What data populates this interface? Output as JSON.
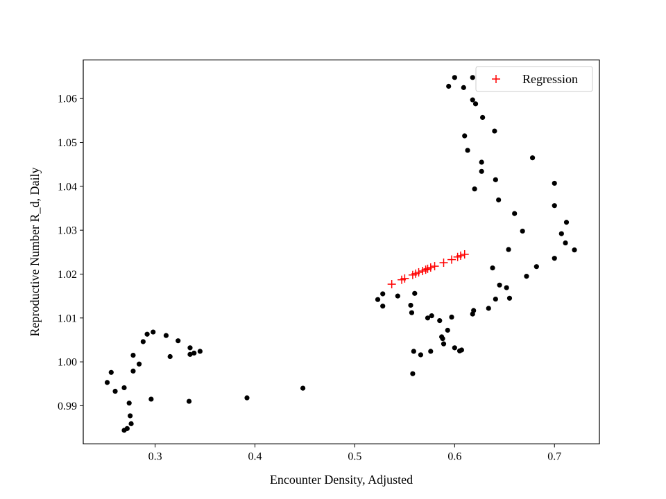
{
  "chart_data": {
    "type": "scatter",
    "title": "",
    "xlabel": "Encounter Density, Adjusted",
    "ylabel": "Reproductive Number R_d, Daily",
    "xlim": [
      0.228,
      0.745
    ],
    "ylim": [
      0.9813,
      1.0688
    ],
    "xticks": [
      0.3,
      0.4,
      0.5,
      0.6,
      0.7
    ],
    "xtick_labels": [
      "0.3",
      "0.4",
      "0.5",
      "0.6",
      "0.7"
    ],
    "yticks": [
      0.99,
      1.0,
      1.01,
      1.02,
      1.03,
      1.04,
      1.05,
      1.06
    ],
    "ytick_labels": [
      "0.99",
      "1.00",
      "1.01",
      "1.02",
      "1.03",
      "1.04",
      "1.05",
      "1.06"
    ],
    "grid": false,
    "legend": {
      "position": "top-right",
      "entries": [
        "Regression"
      ]
    },
    "colors": {
      "observed": "#000000",
      "regression": "#ff0000"
    },
    "series": [
      {
        "marker": "dot",
        "color": "#000000",
        "points": [
          [
            0.252,
            0.9953
          ],
          [
            0.256,
            0.9976
          ],
          [
            0.26,
            0.9933
          ],
          [
            0.269,
            0.9941
          ],
          [
            0.269,
            0.9844
          ],
          [
            0.272,
            0.9848
          ],
          [
            0.274,
            0.9906
          ],
          [
            0.275,
            0.9877
          ],
          [
            0.276,
            0.9859
          ],
          [
            0.278,
            0.9979
          ],
          [
            0.278,
            1.0015
          ],
          [
            0.284,
            0.9995
          ],
          [
            0.288,
            1.0046
          ],
          [
            0.292,
            1.0063
          ],
          [
            0.296,
            0.9915
          ],
          [
            0.298,
            1.0068
          ],
          [
            0.311,
            1.006
          ],
          [
            0.315,
            1.0012
          ],
          [
            0.323,
            1.0048
          ],
          [
            0.334,
            0.991
          ],
          [
            0.335,
            1.0017
          ],
          [
            0.335,
            1.0032
          ],
          [
            0.339,
            1.002
          ],
          [
            0.345,
            1.0024
          ],
          [
            0.392,
            0.9918
          ],
          [
            0.448,
            0.994
          ],
          [
            0.523,
            1.0142
          ],
          [
            0.528,
            1.0155
          ],
          [
            0.528,
            1.0127
          ],
          [
            0.543,
            1.015
          ],
          [
            0.556,
            1.0129
          ],
          [
            0.557,
            1.0112
          ],
          [
            0.559,
            1.0024
          ],
          [
            0.56,
            1.0156
          ],
          [
            0.558,
            0.9973
          ],
          [
            0.566,
            1.0016
          ],
          [
            0.573,
            1.01
          ],
          [
            0.576,
            1.0024
          ],
          [
            0.577,
            1.0105
          ],
          [
            0.585,
            1.0094
          ],
          [
            0.587,
            1.0057
          ],
          [
            0.588,
            1.0053
          ],
          [
            0.589,
            1.0041
          ],
          [
            0.593,
            1.0072
          ],
          [
            0.597,
            1.0102
          ],
          [
            0.6,
            1.0032
          ],
          [
            0.605,
            1.0025
          ],
          [
            0.607,
            1.0027
          ],
          [
            0.594,
            1.0628
          ],
          [
            0.6,
            1.0648
          ],
          [
            0.609,
            1.0625
          ],
          [
            0.618,
            1.0648
          ],
          [
            0.618,
            1.0597
          ],
          [
            0.621,
            1.0588
          ],
          [
            0.628,
            1.0557
          ],
          [
            0.61,
            1.0515
          ],
          [
            0.613,
            1.0482
          ],
          [
            0.627,
            1.0455
          ],
          [
            0.627,
            1.0434
          ],
          [
            0.62,
            1.0394
          ],
          [
            0.618,
            1.0109
          ],
          [
            0.619,
            1.0117
          ],
          [
            0.634,
            1.0122
          ],
          [
            0.638,
            1.0214
          ],
          [
            0.64,
            1.0526
          ],
          [
            0.641,
            1.0415
          ],
          [
            0.644,
            1.0369
          ],
          [
            0.641,
            1.0143
          ],
          [
            0.645,
            1.0175
          ],
          [
            0.652,
            1.0169
          ],
          [
            0.654,
            1.0256
          ],
          [
            0.655,
            1.0145
          ],
          [
            0.66,
            1.0338
          ],
          [
            0.668,
            1.0298
          ],
          [
            0.672,
            1.0195
          ],
          [
            0.678,
            1.0465
          ],
          [
            0.682,
            1.0217
          ],
          [
            0.7,
            1.0407
          ],
          [
            0.7,
            1.0356
          ],
          [
            0.7,
            1.0236
          ],
          [
            0.707,
            1.0292
          ],
          [
            0.711,
            1.0271
          ],
          [
            0.712,
            1.0318
          ],
          [
            0.72,
            1.0255
          ]
        ]
      },
      {
        "name": "Regression",
        "marker": "plus",
        "color": "#ff0000",
        "points": [
          [
            0.537,
            1.0177
          ],
          [
            0.547,
            1.0187
          ],
          [
            0.55,
            1.019
          ],
          [
            0.558,
            1.0198
          ],
          [
            0.561,
            1.0201
          ],
          [
            0.564,
            1.0204
          ],
          [
            0.568,
            1.0207
          ],
          [
            0.571,
            1.021
          ],
          [
            0.573,
            1.0212
          ],
          [
            0.576,
            1.0215
          ],
          [
            0.58,
            1.0218
          ],
          [
            0.589,
            1.0226
          ],
          [
            0.597,
            1.0233
          ],
          [
            0.603,
            1.0239
          ],
          [
            0.606,
            1.0242
          ],
          [
            0.61,
            1.0245
          ]
        ]
      }
    ]
  }
}
